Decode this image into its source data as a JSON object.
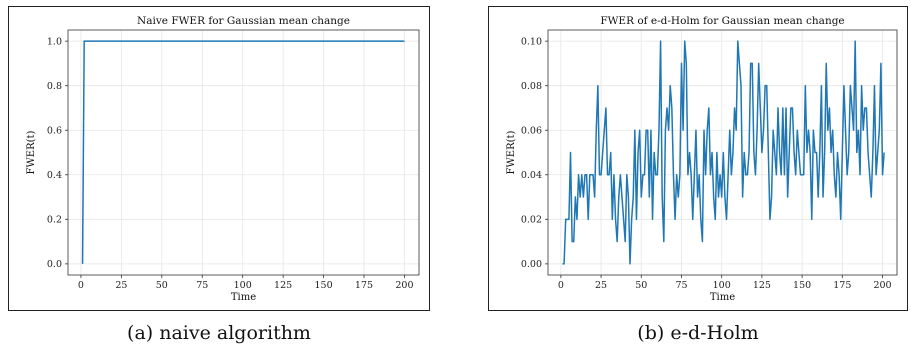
{
  "chart_data": [
    {
      "type": "line",
      "title": "Naive FWER for Gaussian mean change",
      "xlabel": "Time",
      "ylabel": "FWER(t)",
      "xlim": [
        -8,
        209
      ],
      "ylim": [
        -0.05,
        1.05
      ],
      "xticks": [
        0,
        25,
        50,
        75,
        100,
        125,
        150,
        175,
        200
      ],
      "yticks": [
        0.0,
        0.2,
        0.4,
        0.6,
        0.8,
        1.0
      ],
      "ytick_format": 1,
      "grid": true,
      "line_color": "#1f77b4",
      "series": [
        {
          "x": [
            1,
            2,
            3,
            50,
            100,
            150,
            200
          ],
          "y": [
            0.0,
            1.0,
            1.0,
            1.0,
            1.0,
            1.0,
            1.0
          ]
        }
      ]
    },
    {
      "type": "line",
      "title": "FWER of e-d-Holm for Gaussian mean change",
      "xlabel": "Time",
      "ylabel": "FWER(t)",
      "xlim": [
        -8,
        209
      ],
      "ylim": [
        -0.005,
        0.105
      ],
      "xticks": [
        0,
        25,
        50,
        75,
        100,
        125,
        150,
        175,
        200
      ],
      "yticks": [
        0.0,
        0.02,
        0.04,
        0.06,
        0.08,
        0.1
      ],
      "ytick_format": 2,
      "grid": true,
      "line_color": "#1f77b4",
      "series": [
        {
          "x": [
            1,
            2,
            3,
            4,
            5,
            6,
            7,
            8,
            9,
            10,
            11,
            12,
            13,
            14,
            15,
            16,
            17,
            18,
            19,
            20,
            21,
            22,
            23,
            24,
            25,
            26,
            27,
            28,
            29,
            30,
            31,
            32,
            33,
            34,
            35,
            36,
            37,
            38,
            39,
            40,
            41,
            42,
            43,
            44,
            45,
            46,
            47,
            48,
            49,
            50,
            51,
            52,
            53,
            54,
            55,
            56,
            57,
            58,
            59,
            60,
            61,
            62,
            63,
            64,
            65,
            66,
            67,
            68,
            69,
            70,
            71,
            72,
            73,
            74,
            75,
            76,
            77,
            78,
            79,
            80,
            81,
            82,
            83,
            84,
            85,
            86,
            87,
            88,
            89,
            90,
            91,
            92,
            93,
            94,
            95,
            96,
            97,
            98,
            99,
            100,
            101,
            102,
            103,
            104,
            105,
            106,
            107,
            108,
            109,
            110,
            111,
            112,
            113,
            114,
            115,
            116,
            117,
            118,
            119,
            120,
            121,
            122,
            123,
            124,
            125,
            126,
            127,
            128,
            129,
            130,
            131,
            132,
            133,
            134,
            135,
            136,
            137,
            138,
            139,
            140,
            141,
            142,
            143,
            144,
            145,
            146,
            147,
            148,
            149,
            150,
            151,
            152,
            153,
            154,
            155,
            156,
            157,
            158,
            159,
            160,
            161,
            162,
            163,
            164,
            165,
            166,
            167,
            168,
            169,
            170,
            171,
            172,
            173,
            174,
            175,
            176,
            177,
            178,
            179,
            180,
            181,
            182,
            183,
            184,
            185,
            186,
            187,
            188,
            189,
            190,
            191,
            192,
            193,
            194,
            195,
            196,
            197,
            198,
            199,
            200,
            201
          ],
          "y": [
            0.0,
            0.0,
            0.02,
            0.02,
            0.02,
            0.05,
            0.01,
            0.01,
            0.03,
            0.02,
            0.04,
            0.03,
            0.04,
            0.03,
            0.04,
            0.04,
            0.02,
            0.04,
            0.04,
            0.04,
            0.03,
            0.06,
            0.08,
            0.04,
            0.04,
            0.05,
            0.06,
            0.07,
            0.04,
            0.04,
            0.05,
            0.02,
            0.04,
            0.02,
            0.01,
            0.03,
            0.04,
            0.03,
            0.02,
            0.01,
            0.04,
            0.03,
            0.0,
            0.02,
            0.03,
            0.06,
            0.02,
            0.05,
            0.06,
            0.03,
            0.04,
            0.04,
            0.06,
            0.06,
            0.03,
            0.06,
            0.02,
            0.05,
            0.04,
            0.04,
            0.06,
            0.1,
            0.03,
            0.01,
            0.06,
            0.07,
            0.06,
            0.08,
            0.07,
            0.04,
            0.02,
            0.04,
            0.03,
            0.04,
            0.09,
            0.06,
            0.1,
            0.09,
            0.04,
            0.05,
            0.04,
            0.02,
            0.04,
            0.06,
            0.03,
            0.04,
            0.02,
            0.01,
            0.06,
            0.04,
            0.06,
            0.07,
            0.04,
            0.05,
            0.03,
            0.02,
            0.05,
            0.03,
            0.04,
            0.03,
            0.05,
            0.03,
            0.02,
            0.04,
            0.06,
            0.04,
            0.05,
            0.07,
            0.06,
            0.1,
            0.09,
            0.08,
            0.03,
            0.05,
            0.04,
            0.04,
            0.05,
            0.09,
            0.09,
            0.05,
            0.04,
            0.06,
            0.09,
            0.07,
            0.05,
            0.06,
            0.08,
            0.08,
            0.05,
            0.02,
            0.03,
            0.06,
            0.05,
            0.04,
            0.07,
            0.05,
            0.04,
            0.07,
            0.04,
            0.07,
            0.03,
            0.05,
            0.07,
            0.07,
            0.05,
            0.04,
            0.06,
            0.05,
            0.04,
            0.04,
            0.04,
            0.08,
            0.05,
            0.06,
            0.05,
            0.02,
            0.06,
            0.05,
            0.05,
            0.03,
            0.05,
            0.08,
            0.03,
            0.05,
            0.09,
            0.06,
            0.07,
            0.05,
            0.06,
            0.04,
            0.03,
            0.05,
            0.04,
            0.02,
            0.05,
            0.08,
            0.06,
            0.04,
            0.05,
            0.08,
            0.07,
            0.06,
            0.1,
            0.05,
            0.06,
            0.04,
            0.08,
            0.06,
            0.07,
            0.07,
            0.05,
            0.04,
            0.03,
            0.05,
            0.08,
            0.04,
            0.05,
            0.06,
            0.09,
            0.04,
            0.05
          ]
        }
      ]
    }
  ],
  "captions": [
    "(a) naive algorithm",
    "(b) e-d-Holm"
  ]
}
